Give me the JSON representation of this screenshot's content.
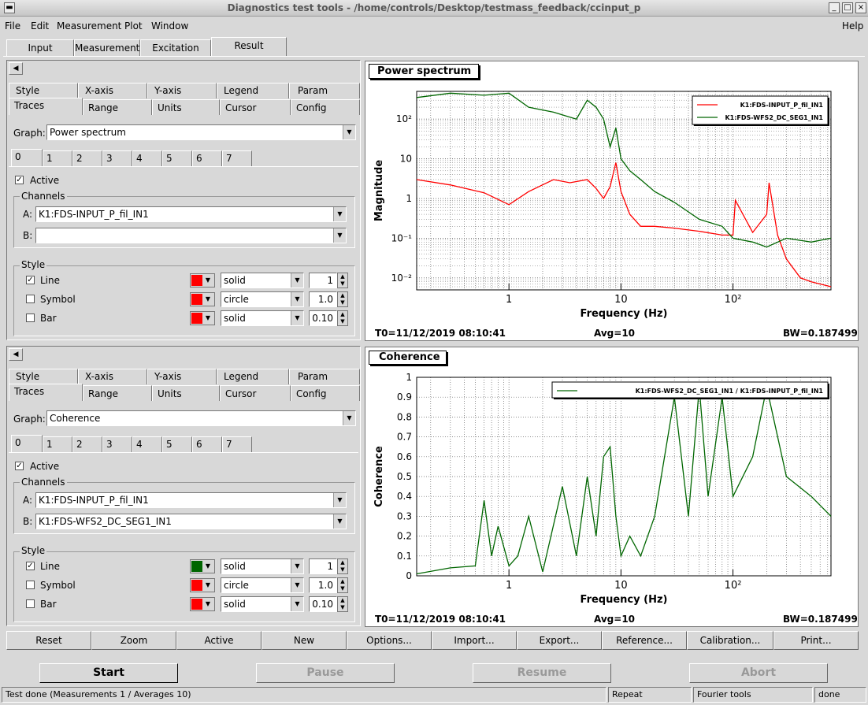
{
  "window": {
    "title": "Diagnostics test tools - /home/controls/Desktop/testmass_feedback/ccinput_p"
  },
  "menu": [
    "File",
    "Edit",
    "Measurement",
    "Plot",
    "Window",
    "Help"
  ],
  "main_tabs": [
    "Input",
    "Measurement",
    "Excitation",
    "Result"
  ],
  "top_panel": {
    "tabs_row1": [
      "Style",
      "X-axis",
      "Y-axis",
      "Legend",
      "Param"
    ],
    "tabs_row2": [
      "Traces",
      "Range",
      "Units",
      "Cursor",
      "Config"
    ],
    "graph_label": "Graph:",
    "graph_value": "Power spectrum",
    "trace_tabs": [
      "0",
      "1",
      "2",
      "3",
      "4",
      "5",
      "6",
      "7"
    ],
    "active_label": "Active",
    "channels_label": "Channels",
    "chan_a_label": "A:",
    "chan_a": "K1:FDS-INPUT_P_fil_IN1",
    "chan_b_label": "B:",
    "chan_b": "",
    "style_label": "Style",
    "line_label": "Line",
    "line_color": "#ff0000",
    "line_style": "solid",
    "line_width": "1",
    "symbol_label": "Symbol",
    "symbol_color": "#ff0000",
    "symbol_style": "circle",
    "symbol_size": "1.0",
    "bar_label": "Bar",
    "bar_color": "#ff0000",
    "bar_style": "solid",
    "bar_width": "0.10"
  },
  "bottom_panel": {
    "tabs_row1": [
      "Style",
      "X-axis",
      "Y-axis",
      "Legend",
      "Param"
    ],
    "tabs_row2": [
      "Traces",
      "Range",
      "Units",
      "Cursor",
      "Config"
    ],
    "graph_label": "Graph:",
    "graph_value": "Coherence",
    "trace_tabs": [
      "0",
      "1",
      "2",
      "3",
      "4",
      "5",
      "6",
      "7"
    ],
    "active_label": "Active",
    "channels_label": "Channels",
    "chan_a_label": "A:",
    "chan_a": "K1:FDS-INPUT_P_fil_IN1",
    "chan_b_label": "B:",
    "chan_b": "K1:FDS-WFS2_DC_SEG1_IN1",
    "style_label": "Style",
    "line_label": "Line",
    "line_color": "#006600",
    "line_style": "solid",
    "line_width": "1",
    "symbol_label": "Symbol",
    "symbol_color": "#ff0000",
    "symbol_style": "circle",
    "symbol_size": "1.0",
    "bar_label": "Bar",
    "bar_color": "#ff0000",
    "bar_style": "solid",
    "bar_width": "0.10"
  },
  "plot1": {
    "title": "Power spectrum",
    "t0": "T0=11/12/2019 08:10:41",
    "avg": "Avg=10",
    "bw": "BW=0.187499"
  },
  "plot2": {
    "title": "Coherence",
    "t0": "T0=11/12/2019 08:10:41",
    "avg": "Avg=10",
    "bw": "BW=0.187499"
  },
  "chart_data": [
    {
      "type": "line",
      "title": "Power spectrum",
      "xlabel": "Frequency (Hz)",
      "ylabel": "Magnitude",
      "xscale": "log",
      "yscale": "log",
      "xlim": [
        0.15,
        750
      ],
      "ylim": [
        0.005,
        500
      ],
      "x_ticks": [
        "1",
        "10",
        "10²"
      ],
      "y_ticks": [
        "10⁻²",
        "10⁻¹",
        "1",
        "10",
        "10²"
      ],
      "grid": true,
      "legend_position": "top-right",
      "series": [
        {
          "name": "K1:FDS-INPUT_P_fil_IN1",
          "color": "#ff0000",
          "x": [
            0.15,
            0.3,
            0.6,
            1.0,
            1.5,
            2.5,
            3.5,
            5,
            6,
            7,
            8,
            9,
            10,
            12,
            15,
            20,
            30,
            50,
            80,
            100,
            105,
            150,
            200,
            210,
            250,
            300,
            400,
            500,
            750
          ],
          "y": [
            3,
            2.2,
            1.4,
            0.7,
            1.5,
            3,
            2.5,
            3,
            1.8,
            1,
            2,
            8,
            1.5,
            0.4,
            0.2,
            0.2,
            0.18,
            0.15,
            0.12,
            0.12,
            0.9,
            0.14,
            0.4,
            2.5,
            0.12,
            0.03,
            0.01,
            0.008,
            0.006
          ]
        },
        {
          "name": "K1:FDS-WFS2_DC_SEG1_IN1",
          "color": "#006600",
          "x": [
            0.15,
            0.3,
            0.6,
            1.0,
            1.5,
            2.5,
            4,
            5,
            6,
            7,
            8,
            9,
            10,
            12,
            15,
            20,
            30,
            50,
            80,
            100,
            150,
            200,
            300,
            500,
            750
          ],
          "y": [
            350,
            450,
            400,
            450,
            200,
            150,
            100,
            300,
            200,
            100,
            20,
            60,
            10,
            5,
            3,
            1.5,
            0.8,
            0.3,
            0.2,
            0.1,
            0.08,
            0.06,
            0.1,
            0.08,
            0.1
          ]
        }
      ]
    },
    {
      "type": "line",
      "title": "Coherence",
      "xlabel": "Frequency (Hz)",
      "ylabel": "Coherence",
      "xscale": "log",
      "xlim": [
        0.15,
        750
      ],
      "ylim": [
        0,
        1
      ],
      "x_ticks": [
        "1",
        "10",
        "10²"
      ],
      "y_ticks": [
        "0",
        "0.1",
        "0.2",
        "0.3",
        "0.4",
        "0.5",
        "0.6",
        "0.7",
        "0.8",
        "0.9",
        "1"
      ],
      "grid": true,
      "legend_position": "top-right",
      "series": [
        {
          "name": "K1:FDS-WFS2_DC_SEG1_IN1 / K1:FDS-INPUT_P_fil_IN1",
          "color": "#006600",
          "x": [
            0.15,
            0.3,
            0.5,
            0.6,
            0.7,
            0.8,
            1.0,
            1.2,
            1.5,
            2.0,
            3,
            4,
            5,
            6,
            7,
            8,
            9,
            10,
            12,
            15,
            20,
            30,
            40,
            50,
            60,
            80,
            100,
            150,
            200,
            300,
            500,
            750
          ],
          "y": [
            0.01,
            0.04,
            0.05,
            0.38,
            0.1,
            0.25,
            0.05,
            0.1,
            0.3,
            0.02,
            0.45,
            0.1,
            0.5,
            0.2,
            0.6,
            0.65,
            0.3,
            0.1,
            0.2,
            0.1,
            0.3,
            0.9,
            0.3,
            0.95,
            0.4,
            0.9,
            0.4,
            0.6,
            0.95,
            0.5,
            0.4,
            0.3
          ]
        }
      ]
    }
  ],
  "buttons": [
    "Reset",
    "Zoom",
    "Active",
    "New",
    "Options...",
    "Import...",
    "Export...",
    "Reference...",
    "Calibration...",
    "Print..."
  ],
  "actions": {
    "start": "Start",
    "pause": "Pause",
    "resume": "Resume",
    "abort": "Abort"
  },
  "status": {
    "message": "Test done (Measurements 1 / Averages 10)",
    "mode": "Repeat",
    "tool": "Fourier tools",
    "state": "done"
  }
}
